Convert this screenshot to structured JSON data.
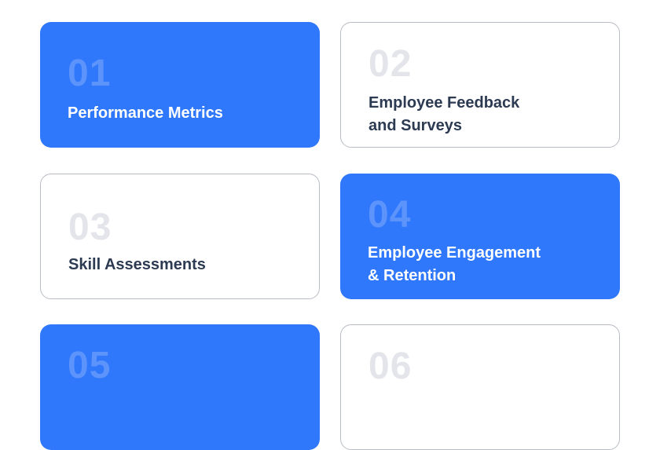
{
  "cards": [
    {
      "number": "01",
      "title_lines": [
        "Performance Metrics"
      ],
      "style": "blue"
    },
    {
      "number": "02",
      "title_lines": [
        "Employee Feedback",
        "and Surveys"
      ],
      "style": "white"
    },
    {
      "number": "03",
      "title_lines": [
        "Skill Assessments"
      ],
      "style": "white"
    },
    {
      "number": "04",
      "title_lines": [
        "Employee Engagement",
        "& Retention"
      ],
      "style": "blue"
    },
    {
      "number": "05",
      "title_lines": [],
      "style": "blue"
    },
    {
      "number": "06",
      "title_lines": [],
      "style": "white"
    }
  ],
  "colors": {
    "accent_blue": "#2f77fb",
    "card_border": "#b8bcc4",
    "dark_text": "#2c3a52",
    "muted_number": "#e3e5ea"
  }
}
